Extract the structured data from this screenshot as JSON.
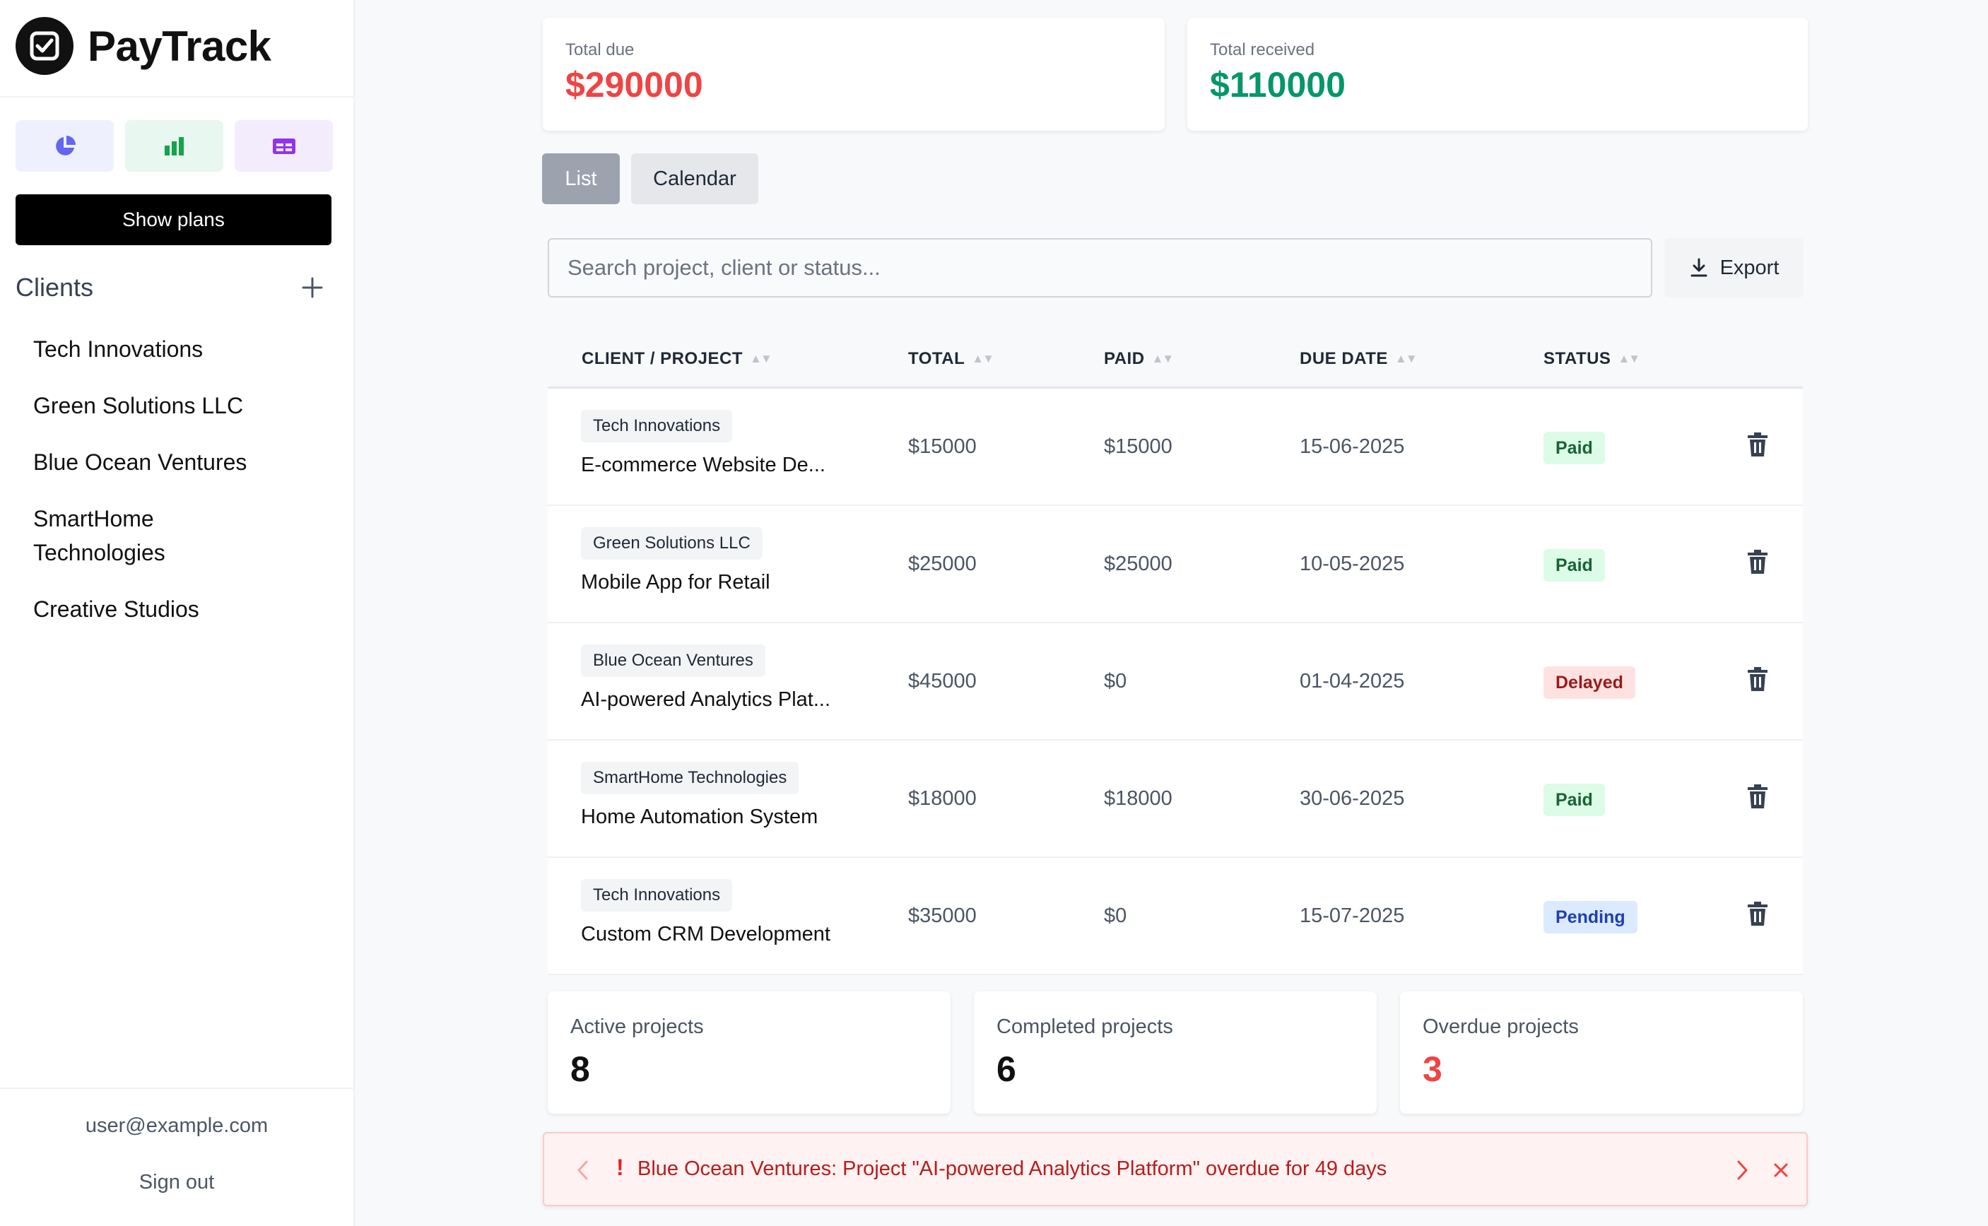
{
  "app": {
    "name": "PayTrack"
  },
  "sidebar": {
    "plans_button": "Show plans",
    "clients_title": "Clients",
    "clients": [
      "Tech Innovations",
      "Green Solutions LLC",
      "Blue Ocean Ventures",
      "SmartHome Technologies",
      "Creative Studios"
    ],
    "user_email": "user@example.com",
    "sign_out": "Sign out",
    "view_icons": [
      "pie-chart-icon",
      "bar-chart-icon",
      "card-list-icon"
    ]
  },
  "summary": {
    "total_due_label": "Total due",
    "total_due_value": "$290000",
    "total_received_label": "Total received",
    "total_received_value": "$110000"
  },
  "tabs": {
    "list": "List",
    "calendar": "Calendar",
    "active": "List"
  },
  "search": {
    "placeholder": "Search project, client or status...",
    "value": ""
  },
  "export_label": "Export",
  "table": {
    "headers": {
      "client_project": "CLIENT / PROJECT",
      "total": "TOTAL",
      "paid": "PAID",
      "due_date": "DUE DATE",
      "status": "STATUS"
    },
    "rows": [
      {
        "client": "Tech Innovations",
        "project": "E-commerce Website De...",
        "total": "$15000",
        "paid": "$15000",
        "due": "15-06-2025",
        "status": "Paid"
      },
      {
        "client": "Green Solutions LLC",
        "project": "Mobile App for Retail",
        "total": "$25000",
        "paid": "$25000",
        "due": "10-05-2025",
        "status": "Paid"
      },
      {
        "client": "Blue Ocean Ventures",
        "project": "AI-powered Analytics Plat...",
        "total": "$45000",
        "paid": "$0",
        "due": "01-04-2025",
        "status": "Delayed"
      },
      {
        "client": "SmartHome Technologies",
        "project": "Home Automation System",
        "total": "$18000",
        "paid": "$18000",
        "due": "30-06-2025",
        "status": "Paid"
      },
      {
        "client": "Tech Innovations",
        "project": "Custom CRM Development",
        "total": "$35000",
        "paid": "$0",
        "due": "15-07-2025",
        "status": "Pending"
      }
    ]
  },
  "stats": {
    "active_label": "Active projects",
    "active_value": "8",
    "completed_label": "Completed projects",
    "completed_value": "6",
    "overdue_label": "Overdue projects",
    "overdue_value": "3"
  },
  "alert": {
    "text": "Blue Ocean Ventures: Project \"AI-powered Analytics Platform\" overdue for 49 days",
    "icon": "!"
  },
  "colors": {
    "due": "#ef4444",
    "received": "#059669",
    "paid_badge": "#dcfce7",
    "delayed_badge": "#fee2e2",
    "pending_badge": "#dbeafe",
    "alert_bg": "#fef2f2"
  }
}
